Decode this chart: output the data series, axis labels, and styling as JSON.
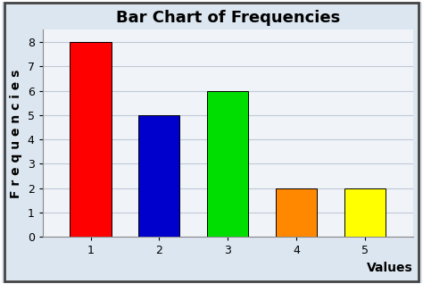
{
  "title": "Bar Chart of Frequencies",
  "xlabel": "Values",
  "ylabel": "Frequencies",
  "categories": [
    1,
    2,
    3,
    4,
    5
  ],
  "values": [
    8,
    5,
    6,
    2,
    2
  ],
  "bar_colors": [
    "#ff0000",
    "#0000cc",
    "#00dd00",
    "#ff8800",
    "#ffff00"
  ],
  "bar_edge_color": "#000000",
  "ylim": [
    0,
    8.5
  ],
  "yticks": [
    0,
    1,
    2,
    3,
    4,
    5,
    6,
    7,
    8
  ],
  "xticks": [
    1,
    2,
    3,
    4,
    5
  ],
  "title_fontsize": 13,
  "axis_label_fontsize": 10,
  "tick_fontsize": 9,
  "plot_bg_color": "#f0f4f8",
  "fig_bg_color": "#dce6f0",
  "grid_color": "#c0c8d8",
  "bar_width": 0.6,
  "title_fontweight": "bold",
  "axis_label_fontweight": "bold",
  "xlim": [
    0.3,
    5.7
  ]
}
